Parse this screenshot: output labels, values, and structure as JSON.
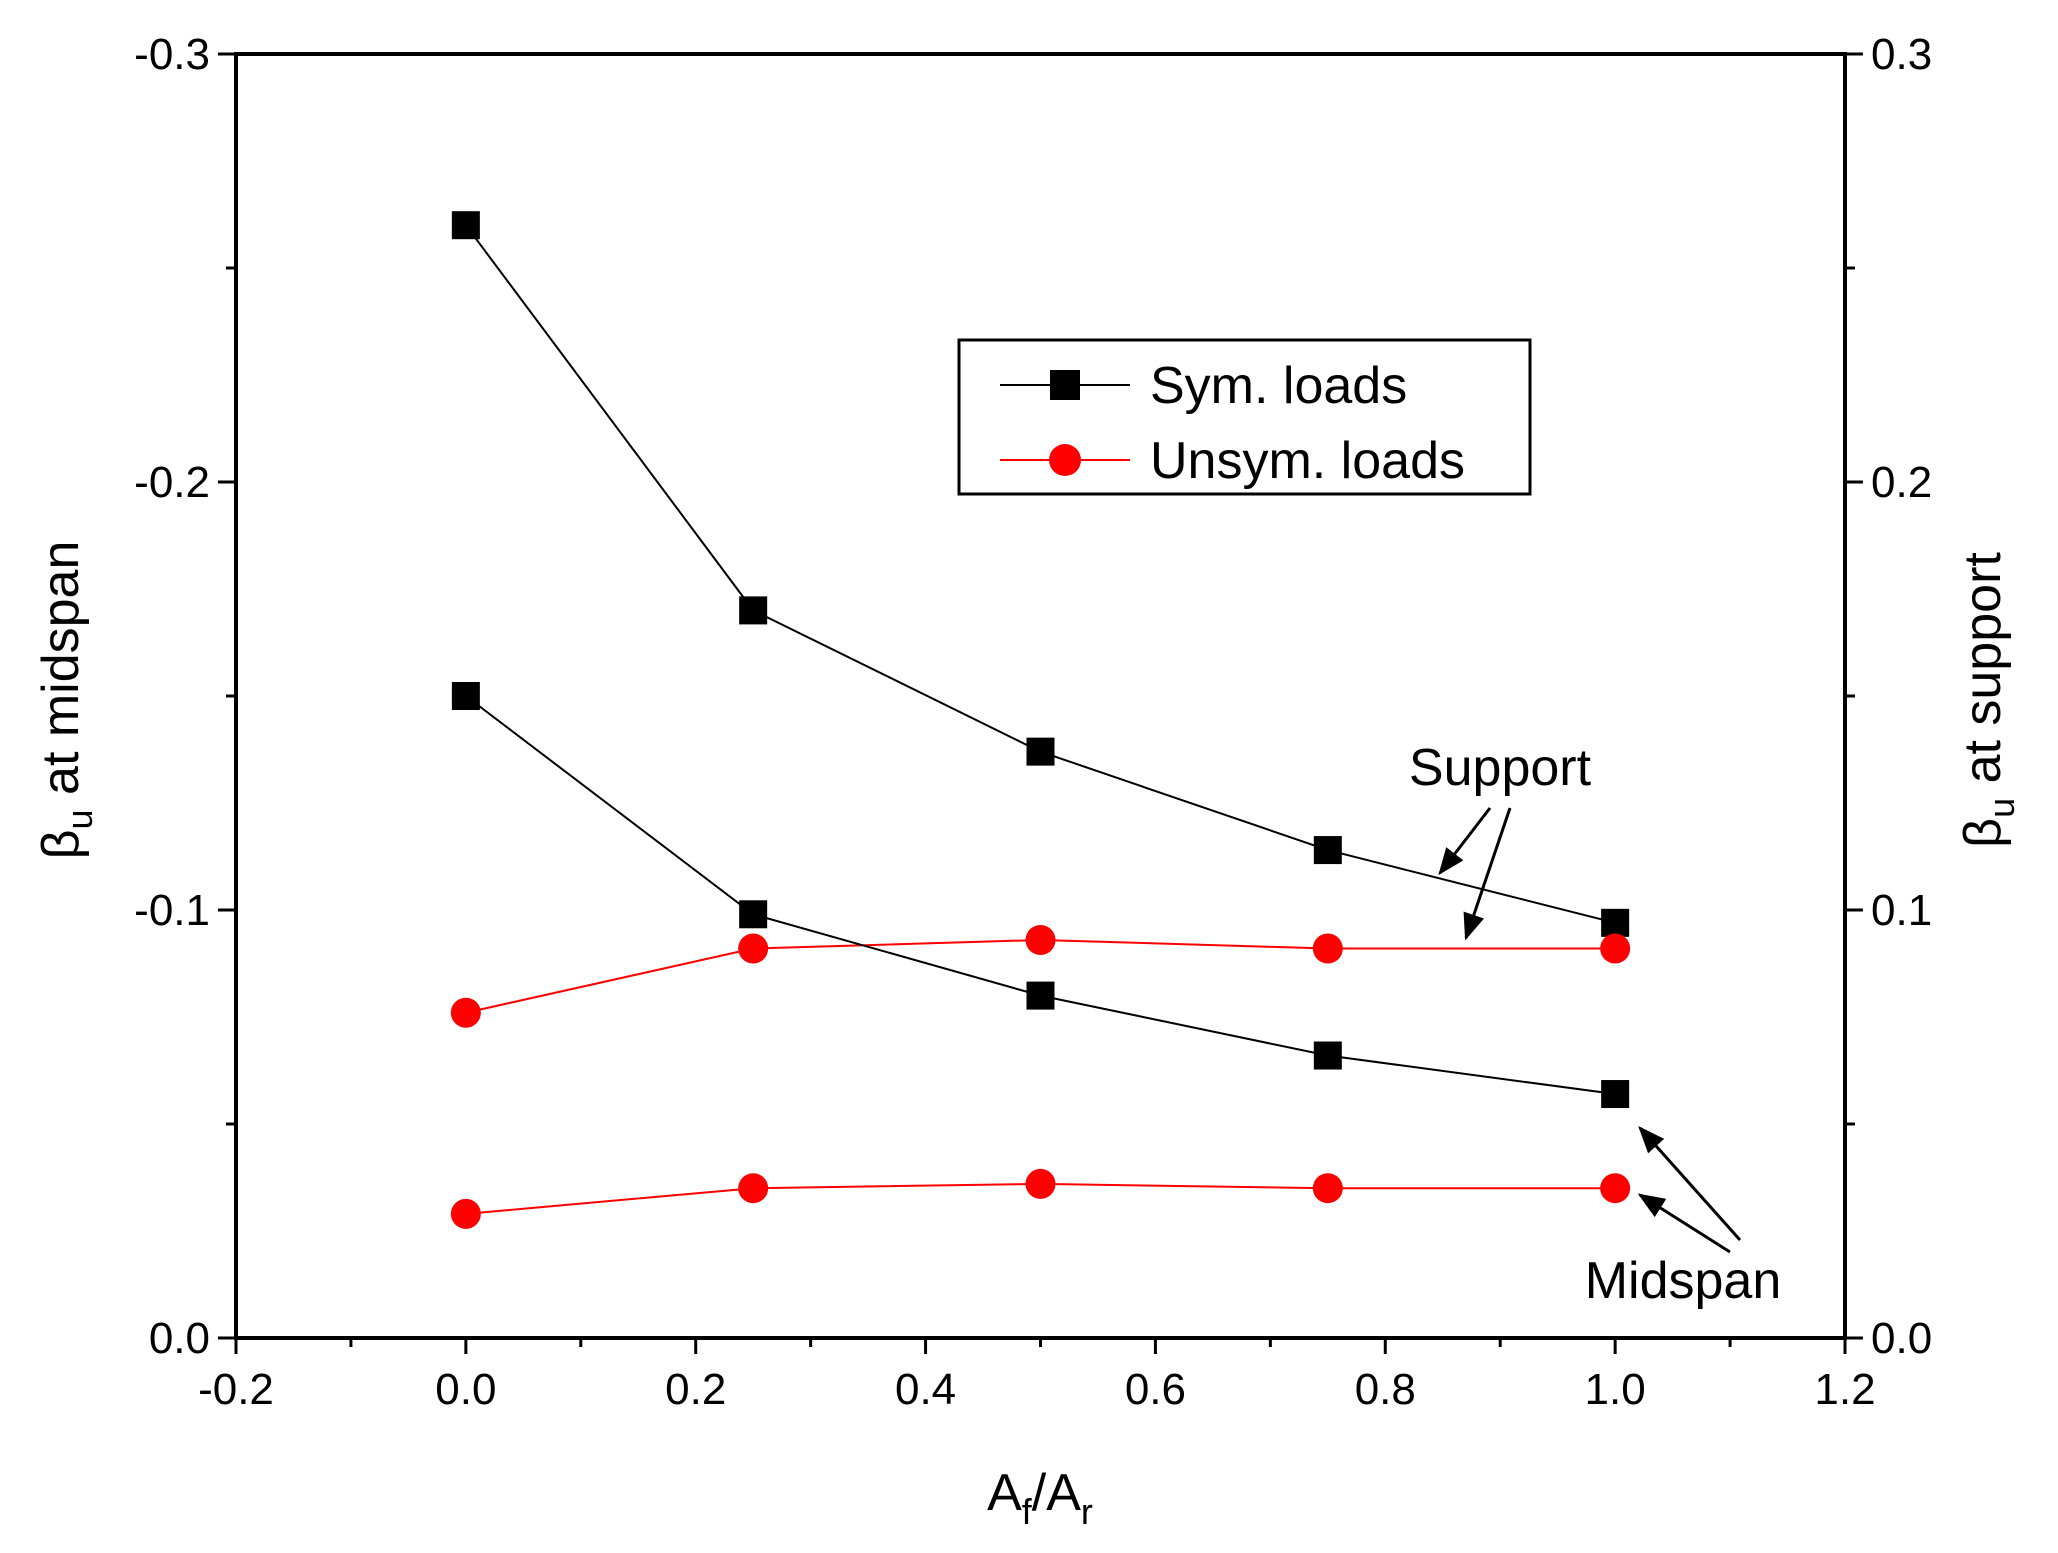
{
  "chart_data": {
    "type": "line",
    "title": "",
    "xlabel": {
      "main": "A",
      "sub1": "f",
      "sep": "/A",
      "sub2": "r"
    },
    "ylabel_left": {
      "symbol": "β",
      "sub": "u",
      "text": " at midspan"
    },
    "ylabel_right": {
      "symbol": "β",
      "sub": "u",
      "text": " at support"
    },
    "xlim": [
      -0.2,
      1.2
    ],
    "ylim_left": [
      0.0,
      -0.3
    ],
    "ylim_right": [
      0.0,
      0.3
    ],
    "x_ticks": [
      "-0.2",
      "0.0",
      "0.2",
      "0.4",
      "0.6",
      "0.8",
      "1.0",
      "1.2"
    ],
    "y_left_ticks": [
      "0.0",
      "-0.1",
      "-0.2",
      "-0.3"
    ],
    "y_right_ticks": [
      "0.0",
      "0.1",
      "0.2",
      "0.3"
    ],
    "x": [
      0.0,
      0.25,
      0.5,
      0.75,
      1.0
    ],
    "series": [
      {
        "name": "Sym. loads",
        "group": "Support",
        "axis": "right",
        "color": "#000000",
        "marker": "square",
        "values": [
          0.26,
          0.17,
          0.137,
          0.114,
          0.097
        ]
      },
      {
        "name": "Unsym. loads",
        "group": "Support",
        "axis": "right",
        "color": "#ff0000",
        "marker": "circle",
        "values": [
          0.076,
          0.091,
          0.093,
          0.091,
          0.091
        ]
      },
      {
        "name": "Sym. loads",
        "group": "Midspan",
        "axis": "left",
        "color": "#000000",
        "marker": "square",
        "values": [
          -0.15,
          -0.099,
          -0.08,
          -0.066,
          -0.057
        ]
      },
      {
        "name": "Unsym. loads",
        "group": "Midspan",
        "axis": "left",
        "color": "#ff0000",
        "marker": "circle",
        "values": [
          -0.029,
          -0.035,
          -0.036,
          -0.035,
          -0.035
        ]
      }
    ],
    "legend": {
      "position": "upper-center",
      "entries": [
        {
          "label": "Sym. loads",
          "color": "#000000",
          "marker": "square"
        },
        {
          "label": "Unsym. loads",
          "color": "#ff0000",
          "marker": "circle"
        }
      ]
    },
    "annotations": {
      "support": "Support",
      "midspan": "Midspan"
    }
  }
}
